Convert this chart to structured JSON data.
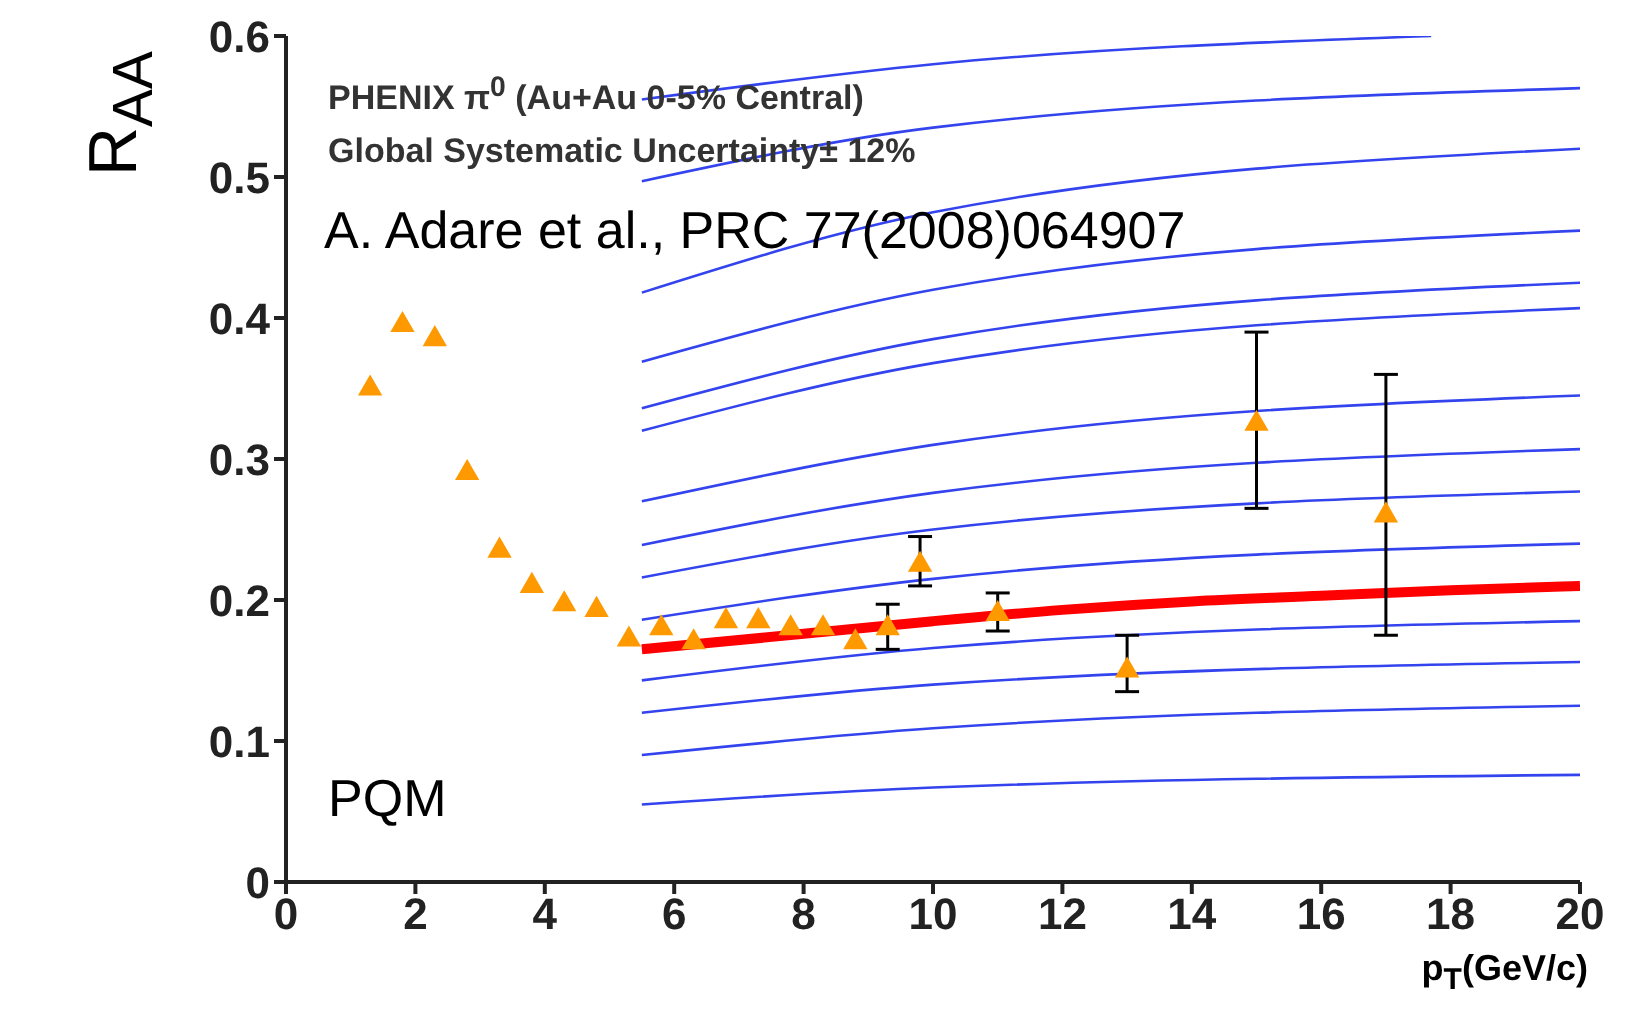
{
  "chart_data": {
    "type": "scatter",
    "xlabel": "p$_{T}$(GeV/c)",
    "ylabel": "R$_{AA}$",
    "xlim": [
      0,
      20
    ],
    "xticks": [
      0,
      2,
      4,
      6,
      8,
      10,
      12,
      14,
      16,
      18,
      20
    ],
    "ylim": [
      0,
      0.6
    ],
    "yticks": [
      0,
      0.1,
      0.2,
      0.3,
      0.4,
      0.5,
      0.6
    ],
    "marker": "triangle",
    "grid": false,
    "annotations": [
      "PHENIX π$^{0}$ (Au+Au 0-5% Central)",
      "Global Systematic Uncertainty± 12%",
      "A. Adare et al., PRC 77(2008)064907",
      "PQM"
    ],
    "series": [
      {
        "type": "line",
        "color": "#3344ee",
        "marker": "none",
        "x": [
          5.5,
          10,
          20
        ],
        "values": [
          0.055,
          0.067,
          0.076
        ]
      },
      {
        "type": "line",
        "color": "#3344ee",
        "marker": "none",
        "x": [
          5.5,
          10,
          20
        ],
        "values": [
          0.09,
          0.109,
          0.125
        ]
      },
      {
        "type": "line",
        "color": "#3344ee",
        "marker": "none",
        "x": [
          5.5,
          10,
          20
        ],
        "values": [
          0.12,
          0.14,
          0.156
        ]
      },
      {
        "type": "line",
        "color": "#3344ee",
        "marker": "none",
        "x": [
          5.5,
          10,
          20
        ],
        "values": [
          0.143,
          0.166,
          0.185
        ]
      },
      {
        "type": "line",
        "color": "#3344ee",
        "marker": "none",
        "x": [
          5.5,
          10,
          20
        ],
        "values": [
          0.186,
          0.215,
          0.24
        ]
      },
      {
        "type": "line",
        "color": "#3344ee",
        "marker": "none",
        "x": [
          5.5,
          10,
          20
        ],
        "values": [
          0.216,
          0.25,
          0.277
        ]
      },
      {
        "type": "line",
        "color": "#3344ee",
        "marker": "none",
        "x": [
          5.5,
          10,
          20
        ],
        "values": [
          0.239,
          0.276,
          0.307
        ]
      },
      {
        "type": "line",
        "color": "#3344ee",
        "marker": "none",
        "x": [
          5.5,
          10,
          20
        ],
        "values": [
          0.27,
          0.31,
          0.345
        ]
      },
      {
        "type": "line",
        "color": "#3344ee",
        "marker": "none",
        "x": [
          5.5,
          10,
          20
        ],
        "values": [
          0.32,
          0.368,
          0.407
        ]
      },
      {
        "type": "line",
        "color": "#3344ee",
        "marker": "none",
        "x": [
          5.5,
          10,
          20
        ],
        "values": [
          0.336,
          0.385,
          0.425
        ]
      },
      {
        "type": "line",
        "color": "#3344ee",
        "marker": "none",
        "x": [
          5.5,
          10,
          20
        ],
        "values": [
          0.369,
          0.42,
          0.462
        ]
      },
      {
        "type": "line",
        "color": "#3344ee",
        "marker": "none",
        "x": [
          5.5,
          10,
          20
        ],
        "values": [
          0.418,
          0.475,
          0.52
        ]
      },
      {
        "type": "line",
        "color": "#3344ee",
        "marker": "none",
        "x": [
          5.5,
          10,
          20
        ],
        "values": [
          0.497,
          0.535,
          0.563
        ]
      },
      {
        "type": "line",
        "color": "#3344ee",
        "marker": "none",
        "x": [
          5.5,
          10,
          17.7
        ],
        "values": [
          0.555,
          0.58,
          0.6
        ]
      },
      {
        "type": "line",
        "color": "#ff0000",
        "marker": "none",
        "x": [
          5.5,
          8,
          10,
          12,
          14,
          16,
          18,
          20
        ],
        "values": [
          0.165,
          0.176,
          0.185,
          0.193,
          0.199,
          0.203,
          0.207,
          0.21
        ]
      },
      {
        "color": "#ff9900",
        "x": [
          1.3,
          1.8,
          2.3,
          2.8,
          3.3,
          3.8,
          4.3,
          4.8,
          5.3,
          5.8,
          6.3,
          6.8,
          7.3,
          7.8,
          8.3,
          8.8,
          9.3,
          9.8,
          11,
          13,
          15,
          17
        ],
        "values": [
          0.35,
          0.395,
          0.385,
          0.29,
          0.235,
          0.21,
          0.197,
          0.193,
          0.172,
          0.18,
          0.17,
          0.185,
          0.185,
          0.18,
          0.18,
          0.17,
          0.18,
          0.225,
          0.19,
          0.15,
          0.325,
          0.26
        ],
        "errors": [
          null,
          null,
          null,
          null,
          null,
          null,
          null,
          null,
          null,
          null,
          null,
          null,
          null,
          null,
          null,
          null,
          [
            0.165,
            0.197
          ],
          [
            0.21,
            0.245
          ],
          [
            0.178,
            0.205
          ],
          [
            0.135,
            0.175
          ],
          [
            0.265,
            0.39
          ],
          [
            0.175,
            0.36
          ]
        ]
      }
    ]
  }
}
